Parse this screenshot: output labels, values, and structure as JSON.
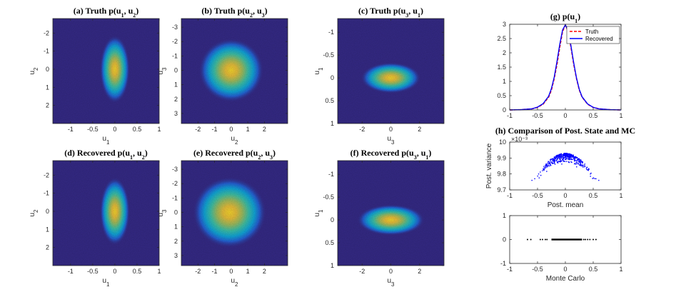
{
  "colors": {
    "density_background": "#352a87",
    "truth_line": "#ff0000",
    "recovered_line": "#0000ff",
    "scatter_blue": "#0000ff",
    "scatter_black": "#000000"
  },
  "chart_data": [
    {
      "id": "a",
      "type": "heatmap",
      "title": "(a)  Truth p(u1, u2)",
      "title_parts": [
        "(a)  Truth p(u",
        "1",
        ", u",
        "2",
        ")"
      ],
      "xlabel": [
        "u",
        "1"
      ],
      "ylabel": [
        "u",
        "2"
      ],
      "xlim": [
        -1.4,
        1.0
      ],
      "ylim": [
        -2.8,
        3.0
      ],
      "y_reversed": true,
      "xticks": [
        -1,
        -0.5,
        0,
        0.5,
        1
      ],
      "xticklabels": [
        "-1",
        "-0.5",
        "0",
        "0.5",
        "1"
      ],
      "yticks": [
        -2,
        -1,
        0,
        1,
        2
      ],
      "yticklabels": [
        "-2",
        "-1",
        "0",
        "1",
        "2"
      ],
      "center": [
        0,
        0
      ],
      "spread": [
        0.13,
        0.72
      ]
    },
    {
      "id": "b",
      "type": "heatmap",
      "title": "(b)  Truth p(u2, u3)",
      "title_parts": [
        "(b)  Truth p(u",
        "2",
        ", u",
        "3",
        ")"
      ],
      "xlabel": [
        "u",
        "2"
      ],
      "ylabel": [
        "u",
        "3"
      ],
      "xlim": [
        -3.0,
        3.4
      ],
      "ylim": [
        -3.6,
        3.7
      ],
      "y_reversed": true,
      "xticks": [
        -2,
        -1,
        0,
        1,
        2
      ],
      "xticklabels": [
        "-2",
        "-1",
        "0",
        "1",
        "2"
      ],
      "yticks": [
        -3,
        -2,
        -1,
        0,
        1,
        2,
        3
      ],
      "yticklabels": [
        "-3",
        "-2",
        "-1",
        "0",
        "1",
        "2",
        "3"
      ],
      "center": [
        0,
        0
      ],
      "spread": [
        0.75,
        0.85
      ]
    },
    {
      "id": "c",
      "type": "heatmap",
      "title": "(c)  Truth p(u3, u1)",
      "title_parts": [
        "(c)  Truth p(u",
        "3",
        ", u",
        "1",
        ")"
      ],
      "xlabel": [
        "u",
        "3"
      ],
      "ylabel": [
        "u",
        "1"
      ],
      "xlim": [
        -3.7,
        3.7
      ],
      "ylim": [
        -1.3,
        1.0
      ],
      "y_reversed": true,
      "xticks": [
        -2,
        0,
        2
      ],
      "xticklabels": [
        "-2",
        "0",
        "2"
      ],
      "yticks": [
        -1,
        -0.5,
        0,
        0.5,
        1
      ],
      "yticklabels": [
        "-1",
        "-0.5",
        "0",
        "0.5",
        "1"
      ],
      "center": [
        0,
        0
      ],
      "spread": [
        0.8,
        0.13
      ]
    },
    {
      "id": "d",
      "type": "heatmap",
      "title": "(d)  Recovered p(u1, u2)",
      "title_parts": [
        "(d)  Recovered p(u",
        "1",
        ", u",
        "2",
        ")"
      ],
      "xlabel": [
        "u",
        "1"
      ],
      "ylabel": [
        "u",
        "2"
      ],
      "xlim": [
        -1.4,
        1.0
      ],
      "ylim": [
        -2.8,
        3.0
      ],
      "y_reversed": true,
      "xticks": [
        -1,
        -0.5,
        0,
        0.5,
        1
      ],
      "xticklabels": [
        "-1",
        "-0.5",
        "0",
        "0.5",
        "1"
      ],
      "yticks": [
        -2,
        -1,
        0,
        1,
        2
      ],
      "yticklabels": [
        "-2",
        "-1",
        "0",
        "1",
        "2"
      ],
      "center": [
        0,
        0
      ],
      "spread": [
        0.13,
        0.72
      ]
    },
    {
      "id": "e",
      "type": "heatmap",
      "title": "(e)  Recovered p(u2, u3)",
      "title_parts": [
        "(e)  Recovered p(u",
        "2",
        ", u",
        "3",
        ")"
      ],
      "xlabel": [
        "u",
        "2"
      ],
      "ylabel": [
        "u",
        "3"
      ],
      "xlim": [
        -3.0,
        3.4
      ],
      "ylim": [
        -3.6,
        3.7
      ],
      "y_reversed": true,
      "xticks": [
        -2,
        -1,
        0,
        1,
        2
      ],
      "xticklabels": [
        "-2",
        "-1",
        "0",
        "1",
        "2"
      ],
      "yticks": [
        -3,
        -2,
        -1,
        0,
        1,
        2,
        3
      ],
      "yticklabels": [
        "-3",
        "-2",
        "-1",
        "0",
        "1",
        "2",
        "3"
      ],
      "center": [
        -0.1,
        0
      ],
      "spread": [
        0.85,
        0.95
      ]
    },
    {
      "id": "f",
      "type": "heatmap",
      "title": "(f)  Recovered p(u3, u1)",
      "title_parts": [
        "(f)  Recovered p(u",
        "3",
        ", u",
        "1",
        ")"
      ],
      "xlabel": [
        "u",
        "3"
      ],
      "ylabel": [
        "u",
        "1"
      ],
      "xlim": [
        -3.7,
        3.7
      ],
      "ylim": [
        -1.3,
        1.0
      ],
      "y_reversed": true,
      "xticks": [
        -2,
        0,
        2
      ],
      "xticklabels": [
        "-2",
        "0",
        "2"
      ],
      "yticks": [
        -1,
        -0.5,
        0,
        0.5,
        1
      ],
      "yticklabels": [
        "-1",
        "-0.5",
        "0",
        "0.5",
        "1"
      ],
      "center": [
        0,
        0
      ],
      "spread": [
        0.9,
        0.13
      ]
    },
    {
      "id": "g",
      "type": "line",
      "title": "(g)  p(u1)",
      "title_parts": [
        "(g)  p(u",
        "1",
        ")"
      ],
      "xlim": [
        -1,
        1
      ],
      "ylim": [
        0,
        3
      ],
      "xticks": [
        -1,
        -0.5,
        0,
        0.5,
        1
      ],
      "xticklabels": [
        "-1",
        "-0.5",
        "0",
        "0.5",
        "1"
      ],
      "yticks": [
        0,
        0.5,
        1,
        1.5,
        2,
        2.5,
        3
      ],
      "yticklabels": [
        "0",
        "0.5",
        "1",
        "1.5",
        "2",
        "2.5",
        "3"
      ],
      "legend_position": "top-right",
      "x": [
        -1,
        -0.8,
        -0.6,
        -0.5,
        -0.4,
        -0.3,
        -0.25,
        -0.2,
        -0.15,
        -0.1,
        -0.05,
        0,
        0.05,
        0.1,
        0.15,
        0.2,
        0.25,
        0.3,
        0.4,
        0.5,
        0.6,
        0.8,
        1
      ],
      "series": [
        {
          "name": "Truth",
          "style": "dashed",
          "values": [
            0.0,
            0.01,
            0.04,
            0.09,
            0.2,
            0.45,
            0.7,
            1.1,
            1.6,
            2.2,
            2.75,
            2.97,
            2.75,
            2.2,
            1.6,
            1.1,
            0.7,
            0.45,
            0.2,
            0.09,
            0.04,
            0.01,
            0.0
          ]
        },
        {
          "name": "Recovered",
          "style": "solid",
          "values": [
            0.0,
            0.01,
            0.04,
            0.1,
            0.22,
            0.48,
            0.75,
            1.15,
            1.7,
            2.3,
            2.8,
            2.98,
            2.78,
            2.25,
            1.65,
            1.12,
            0.72,
            0.46,
            0.21,
            0.09,
            0.04,
            0.01,
            0.0
          ]
        }
      ]
    },
    {
      "id": "h-top",
      "type": "scatter",
      "title": "(h)  Comparison of Post. State and MC",
      "xlabel": "Post. mean",
      "ylabel": "Post. variance",
      "exponent_label": "×10⁻³",
      "xlim": [
        -1,
        1
      ],
      "ylim": [
        9.7,
        10.0
      ],
      "xticks": [
        -1,
        -0.5,
        0,
        0.5,
        1
      ],
      "xticklabels": [
        "-1",
        "-0.5",
        "0",
        "0.5",
        "1"
      ],
      "yticks": [
        9.7,
        9.8,
        9.9,
        10
      ],
      "yticklabels": [
        "9.7",
        "9.8",
        "9.9",
        "10"
      ],
      "cloud": {
        "center_x": 0,
        "spread_x": 0.18,
        "peak_y": 9.93,
        "count": 420
      },
      "points": [
        [
          -0.55,
          9.77
        ],
        [
          -0.6,
          9.76
        ],
        [
          0.55,
          9.77
        ],
        [
          0.6,
          9.76
        ],
        [
          -0.48,
          9.8
        ],
        [
          0.45,
          9.8
        ],
        [
          -0.35,
          9.84
        ],
        [
          0.38,
          9.83
        ]
      ]
    },
    {
      "id": "h-bottom",
      "type": "scatter",
      "xlabel": "Monte Carlo",
      "xlim": [
        -1,
        1
      ],
      "ylim": [
        -1,
        1
      ],
      "xticks": [
        -1,
        -0.5,
        0,
        0.5,
        1
      ],
      "xticklabels": [
        "-1",
        "-0.5",
        "0",
        "0.5",
        "1"
      ],
      "yticks": [
        -1,
        0,
        1
      ],
      "yticklabels": [
        "-1",
        "0",
        "1"
      ],
      "line_y": 0,
      "dense_range": [
        -0.25,
        0.3
      ],
      "points_x": [
        -0.68,
        -0.62,
        -0.45,
        -0.41,
        -0.36,
        -0.33,
        0.33,
        0.36,
        0.4,
        0.44,
        0.5,
        0.55
      ]
    }
  ]
}
